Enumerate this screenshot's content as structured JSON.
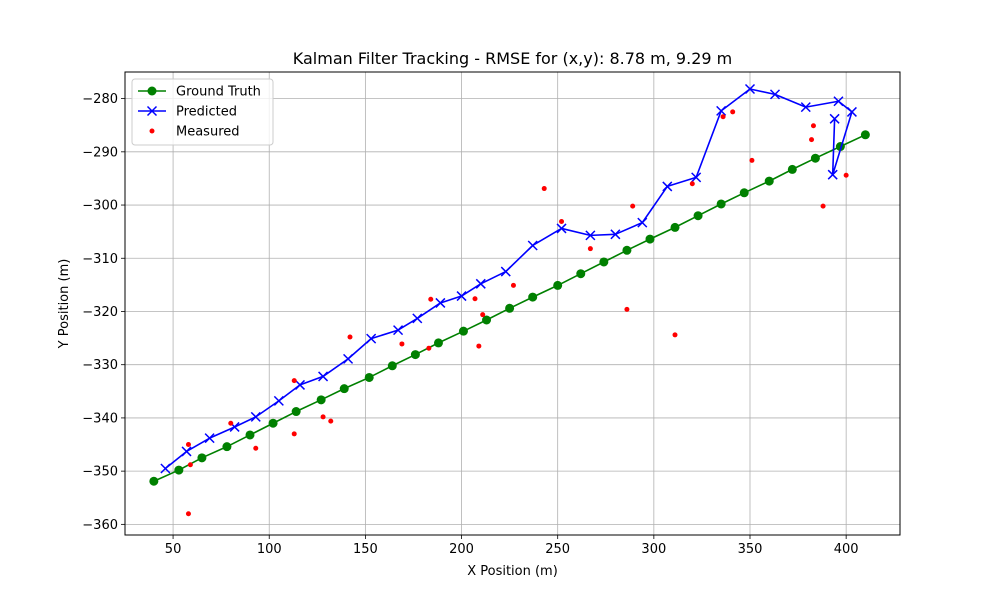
{
  "chart_data": {
    "type": "line",
    "title": "Kalman Filter Tracking - RMSE for (x,y): 8.78 m, 9.29 m",
    "xlabel": "X Position (m)",
    "ylabel": "Y Position (m)",
    "xlim": [
      25,
      428
    ],
    "ylim": [
      -362,
      -275
    ],
    "xticks": [
      50,
      100,
      150,
      200,
      250,
      300,
      350,
      400
    ],
    "yticks": [
      -280,
      -290,
      -300,
      -310,
      -320,
      -330,
      -340,
      -350,
      -360
    ],
    "grid": true,
    "legend_position": "top-left",
    "series": [
      {
        "name": "Ground Truth",
        "type": "line",
        "color": "#008000",
        "marker": "circle",
        "x": [
          40,
          53,
          65,
          78,
          90,
          102,
          114,
          127,
          139,
          152,
          164,
          176,
          188,
          201,
          213,
          225,
          237,
          250,
          262,
          274,
          286,
          298,
          311,
          323,
          335,
          347,
          360,
          372,
          384,
          397,
          410
        ],
        "y": [
          -351.9,
          -349.8,
          -347.5,
          -345.4,
          -343.2,
          -341.0,
          -338.8,
          -336.6,
          -334.5,
          -332.4,
          -330.2,
          -328.1,
          -325.9,
          -323.7,
          -321.6,
          -319.4,
          -317.3,
          -315.1,
          -312.9,
          -310.7,
          -308.5,
          -306.4,
          -304.2,
          -302.0,
          -299.8,
          -297.7,
          -295.5,
          -293.3,
          -291.2,
          -289.0,
          -286.8
        ]
      },
      {
        "name": "Predicted",
        "type": "line",
        "color": "#0000ff",
        "marker": "x",
        "x": [
          46,
          57,
          69,
          82,
          93,
          105,
          116,
          128,
          141,
          153,
          167,
          177,
          189,
          200,
          210,
          223,
          237,
          252,
          267,
          280,
          294,
          307,
          322,
          335,
          350,
          363,
          379,
          396,
          403,
          393,
          394
        ],
        "y": [
          -349.5,
          -346.3,
          -343.8,
          -341.7,
          -339.8,
          -336.8,
          -333.8,
          -332.2,
          -328.9,
          -325.1,
          -323.5,
          -321.3,
          -318.4,
          -317.1,
          -314.8,
          -312.5,
          -307.6,
          -304.4,
          -305.7,
          -305.5,
          -303.3,
          -296.5,
          -294.8,
          -282.3,
          -278.2,
          -279.2,
          -281.6,
          -280.5,
          -282.5,
          -294.3,
          -283.8
        ]
      },
      {
        "name": "Measured",
        "type": "scatter",
        "color": "#ff0000",
        "marker": "dot",
        "x": [
          58,
          59,
          58,
          80,
          93,
          113,
          113,
          128,
          132,
          142,
          169,
          183,
          184,
          207,
          209,
          211,
          227,
          243,
          252,
          267,
          286,
          289,
          311,
          320,
          336,
          341,
          351,
          382,
          383,
          388,
          400
        ],
        "y": [
          -358.0,
          -348.8,
          -345.0,
          -341.0,
          -345.7,
          -333.0,
          -343.0,
          -339.8,
          -340.6,
          -324.8,
          -326.1,
          -326.9,
          -317.7,
          -317.6,
          -326.5,
          -320.6,
          -315.1,
          -296.9,
          -303.1,
          -308.2,
          -319.6,
          -300.2,
          -324.4,
          -296.0,
          -283.4,
          -282.5,
          -291.6,
          -287.7,
          -285.1,
          -300.2,
          -294.4
        ]
      }
    ]
  }
}
